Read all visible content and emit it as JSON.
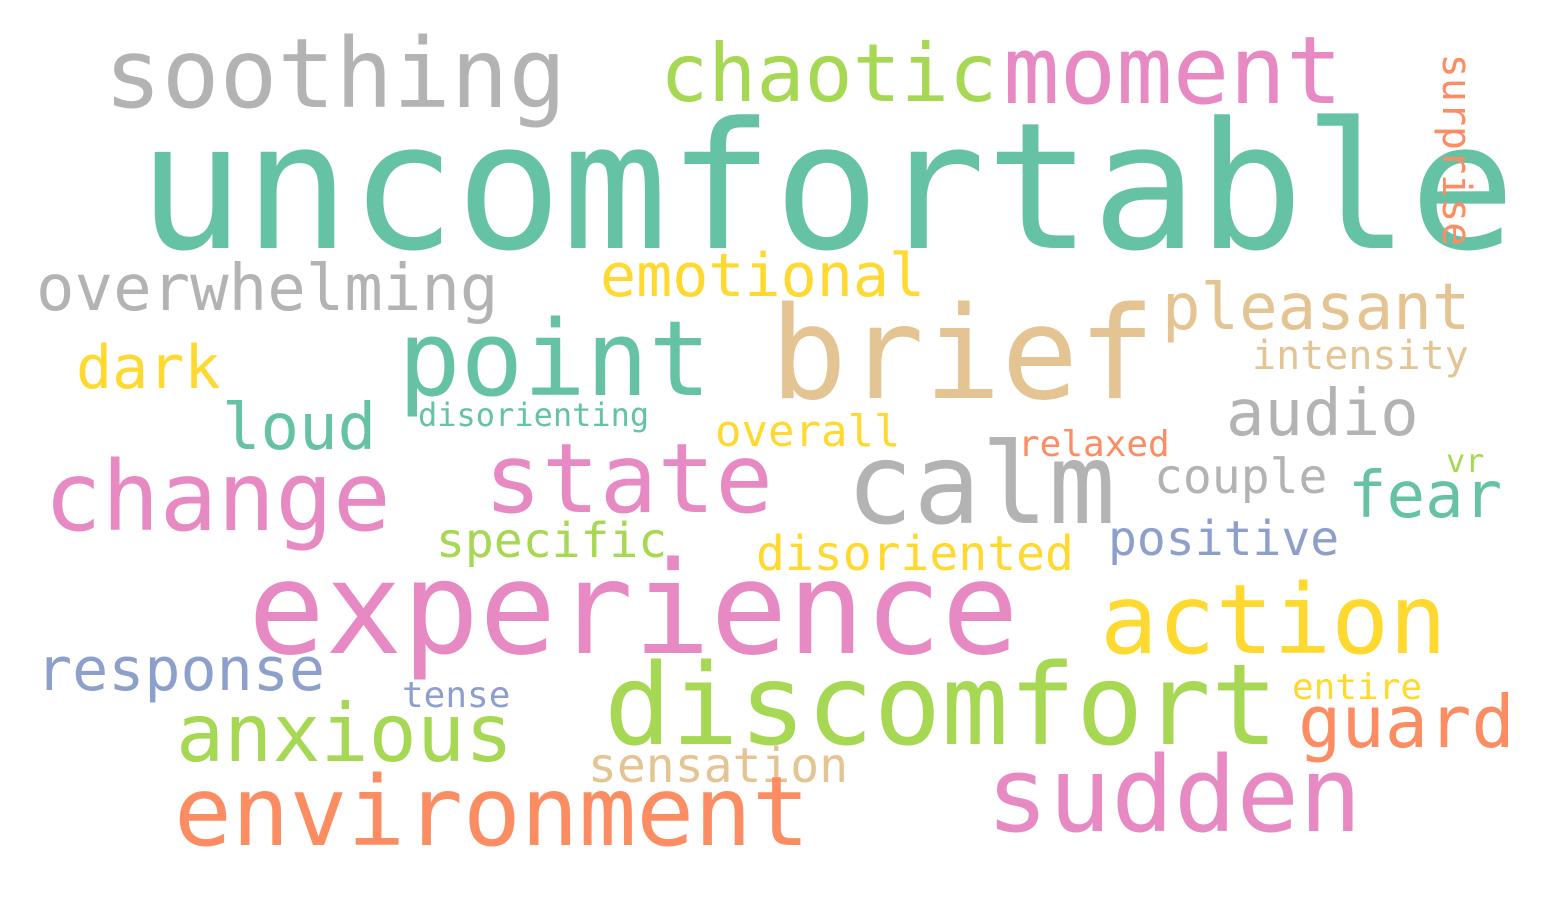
{
  "words": {
    "uncomfortable": {
      "text": "uncomfortable",
      "color": "#66c2a5"
    },
    "soothing": {
      "text": "soothing",
      "color": "#b3b3b3"
    },
    "chaotic": {
      "text": "chaotic",
      "color": "#a6d854"
    },
    "moment": {
      "text": "moment",
      "color": "#e78ac3"
    },
    "surprise": {
      "text": "surprise",
      "color": "#fc8d62"
    },
    "overwhelming": {
      "text": "overwhelming",
      "color": "#b3b3b3"
    },
    "emotional": {
      "text": "emotional",
      "color": "#ffd92f"
    },
    "pleasant": {
      "text": "pleasant",
      "color": "#e5c494"
    },
    "point": {
      "text": "point",
      "color": "#66c2a5"
    },
    "brief": {
      "text": "brief",
      "color": "#e5c494"
    },
    "intensity": {
      "text": "intensity",
      "color": "#e5c494"
    },
    "dark": {
      "text": "dark",
      "color": "#ffd92f"
    },
    "loud": {
      "text": "loud",
      "color": "#66c2a5"
    },
    "disorienting": {
      "text": "disorienting",
      "color": "#66c2a5"
    },
    "overall": {
      "text": "overall",
      "color": "#ffd92f"
    },
    "audio": {
      "text": "audio",
      "color": "#b3b3b3"
    },
    "relaxed": {
      "text": "relaxed",
      "color": "#fc8d62"
    },
    "change": {
      "text": "change",
      "color": "#e78ac3"
    },
    "state": {
      "text": "state",
      "color": "#e78ac3"
    },
    "calm": {
      "text": "calm",
      "color": "#b3b3b3"
    },
    "couple": {
      "text": "couple",
      "color": "#b3b3b3"
    },
    "fear": {
      "text": "fear",
      "color": "#66c2a5"
    },
    "vr": {
      "text": "vr",
      "color": "#a6d854"
    },
    "specific": {
      "text": "specific",
      "color": "#a6d854"
    },
    "disoriented": {
      "text": "disoriented",
      "color": "#ffd92f"
    },
    "positive": {
      "text": "positive",
      "color": "#8da0cb"
    },
    "experience": {
      "text": "experience",
      "color": "#e78ac3"
    },
    "action": {
      "text": "action",
      "color": "#ffd92f"
    },
    "response": {
      "text": "response",
      "color": "#8da0cb"
    },
    "discomfort": {
      "text": "discomfort",
      "color": "#a6d854"
    },
    "tense": {
      "text": "tense",
      "color": "#8da0cb"
    },
    "entire": {
      "text": "entire",
      "color": "#ffd92f"
    },
    "anxious": {
      "text": "anxious",
      "color": "#a6d854"
    },
    "guard": {
      "text": "guard",
      "color": "#fc8d62"
    },
    "sensation": {
      "text": "sensation",
      "color": "#e5c494"
    },
    "environment": {
      "text": "environment",
      "color": "#fc8d62"
    },
    "sudden": {
      "text": "sudden",
      "color": "#e78ac3"
    }
  }
}
